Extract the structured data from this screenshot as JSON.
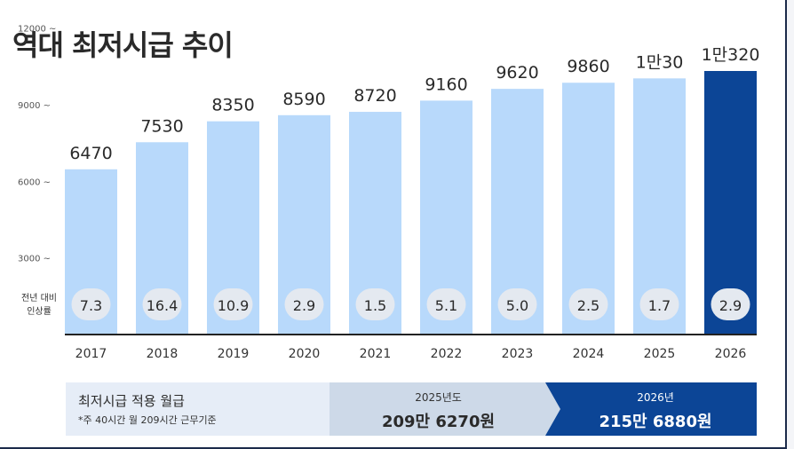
{
  "title": "역대 최저시급 추이",
  "colors": {
    "bar": "#b8d9fb",
    "highlight": "#0c4596",
    "pill": "#e4e9f0",
    "axis": "#222222"
  },
  "chart_data": {
    "type": "bar",
    "categories": [
      "2017",
      "2018",
      "2019",
      "2020",
      "2021",
      "2022",
      "2023",
      "2024",
      "2025",
      "2026"
    ],
    "values": [
      6470,
      7530,
      8350,
      8590,
      8720,
      9160,
      9620,
      9860,
      10030,
      10320
    ],
    "value_labels": [
      "6470",
      "7530",
      "8350",
      "8590",
      "8720",
      "9160",
      "9620",
      "9860",
      "1만30",
      "1만320"
    ],
    "rate_label": [
      "전년 대비",
      "인상률"
    ],
    "rates": [
      "7.3",
      "16.4",
      "10.9",
      "2.9",
      "1.5",
      "5.1",
      "5.0",
      "2.5",
      "1.7",
      "2.9"
    ],
    "y_ticks": [
      {
        "value": 3000,
        "label": "3000 ~"
      },
      {
        "value": 6000,
        "label": "6000 ~"
      },
      {
        "value": 9000,
        "label": "9000 ~"
      },
      {
        "value": 12000,
        "label": "12000 ~"
      }
    ],
    "highlight_index": 9
  },
  "monthly": {
    "label": "최저시급 적용 월급",
    "note": "*주 40시간 월 209시간 근무기준",
    "prev": {
      "year": "2025년도",
      "value": "209만 6270원"
    },
    "curr": {
      "year": "2026년",
      "value": "215만 6880원"
    }
  }
}
